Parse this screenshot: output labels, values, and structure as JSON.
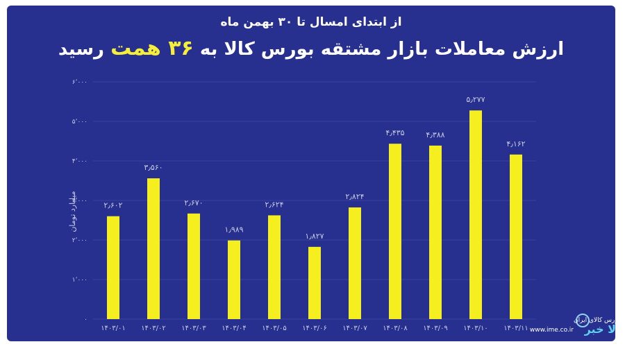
{
  "chart_data": {
    "type": "bar",
    "subtitle": "از ابتدای امسال تا ۳۰ بهمن ماه",
    "title": {
      "start": "ارزش معاملات بازار مشتقه بورس کالا به",
      "highlight": "۳۶ همت",
      "end": "رسید"
    },
    "y_label": "میلیارد تومان",
    "categories": [
      "۱۴۰۳/۰۱",
      "۱۴۰۳/۰۲",
      "۱۴۰۳/۰۳",
      "۱۴۰۳/۰۴",
      "۱۴۰۳/۰۵",
      "۱۴۰۳/۰۶",
      "۱۴۰۳/۰۷",
      "۱۴۰۳/۰۸",
      "۱۴۰۳/۰۹",
      "۱۴۰۳/۱۰",
      "۱۴۰۳/۱۱"
    ],
    "values": [
      2602,
      3560,
      2670,
      1989,
      2624,
      1827,
      2824,
      4435,
      4388,
      5277,
      4162
    ],
    "value_labels": [
      "۲٫۶۰۲",
      "۳٫۵۶۰",
      "۲٫۶۷۰",
      "۱٫۹۸۹",
      "۲٫۶۲۴",
      "۱٫۸۲۷",
      "۲٫۸۲۴",
      "۴٫۴۳۵",
      "۴٫۳۸۸",
      "۵٫۲۷۷",
      "۴٫۱۶۲"
    ],
    "color": "#f6ef1f",
    "ylim": [
      0,
      6000
    ],
    "yticks": [
      {
        "value": 0,
        "label": "۰"
      },
      {
        "value": 1000,
        "label": "۱٬۰۰۰"
      },
      {
        "value": 2000,
        "label": "۲٬۰۰۰"
      },
      {
        "value": 3000,
        "label": "۳٬۰۰۰"
      },
      {
        "value": 4000,
        "label": "۴٬۰۰۰"
      },
      {
        "value": 5000,
        "label": "۵٬۰۰۰"
      },
      {
        "value": 6000,
        "label": "۶٬۰۰۰"
      }
    ],
    "grid": true
  },
  "logo": {
    "name": "بورس کالای ایران",
    "url": "www.ime.co.ir"
  },
  "brand": "کالا خبر"
}
